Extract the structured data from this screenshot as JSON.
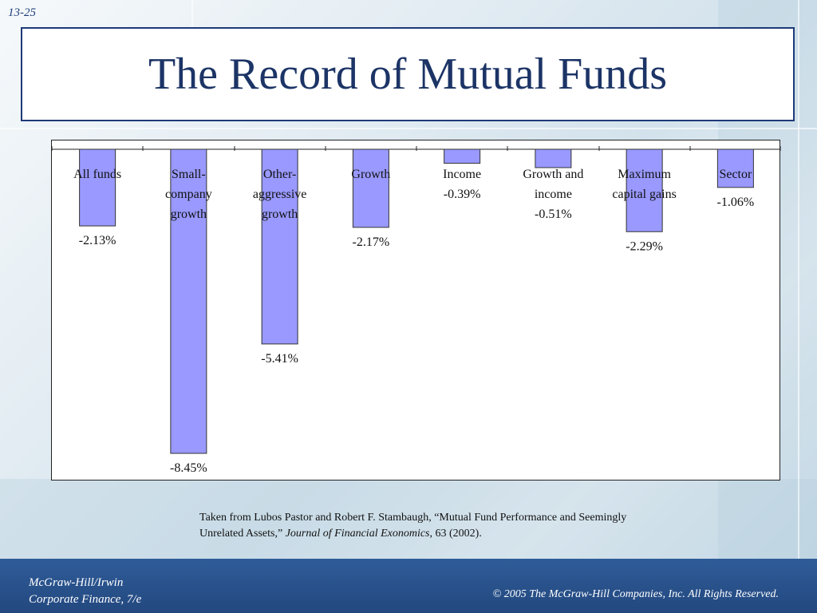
{
  "slide": {
    "number": "13-25",
    "title": "The Record of Mutual Funds"
  },
  "chart_data": {
    "type": "bar",
    "title": "",
    "xlabel": "",
    "ylabel": "",
    "categories": [
      [
        "All funds"
      ],
      [
        "Small-",
        "company",
        "growth"
      ],
      [
        "Other-",
        "aggressive",
        "growth"
      ],
      [
        "Growth"
      ],
      [
        "Income"
      ],
      [
        "Growth and",
        "income"
      ],
      [
        "Maximum",
        "capital gains"
      ],
      [
        "Sector"
      ]
    ],
    "values": [
      -2.13,
      -8.45,
      -5.41,
      -2.17,
      -0.39,
      -0.51,
      -2.29,
      -1.06
    ],
    "value_labels": [
      "-2.13%",
      "-8.45%",
      "-5.41%",
      "-2.17%",
      "-0.39%",
      "-0.51%",
      "-2.29%",
      "-1.06%"
    ],
    "ylim": [
      -8.45,
      0
    ],
    "grid": false,
    "bar_color": "#9999ff",
    "bar_stroke": "#333333"
  },
  "citation": {
    "line1": "Taken from Lubos Pastor and Robert F. Stambaugh, “Mutual Fund Performance and Seemingly",
    "line2_pre": "Unrelated Assets,” ",
    "journal": "Journal of Financial Exonomics,",
    "line2_post": "  63 (2002)."
  },
  "footer": {
    "publisher_line1": "McGraw-Hill/Irwin",
    "publisher_line2": "Corporate Finance, 7/e",
    "copyright": "© 2005  The McGraw-Hill Companies, Inc.  All Rights Reserved."
  }
}
